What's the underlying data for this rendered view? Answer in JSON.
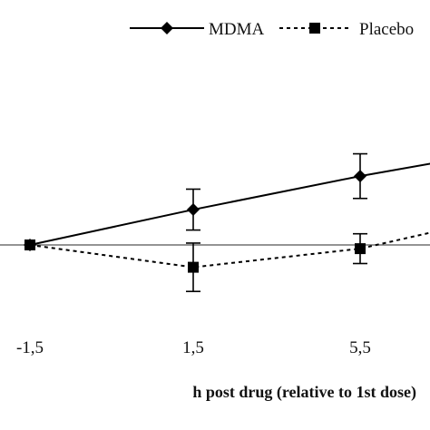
{
  "chart_data": {
    "type": "line",
    "title": "",
    "xlabel": "h post drug (relative to 1st dose)",
    "ylabel": "",
    "x_ticks": [
      "-1,5",
      "1,5",
      "5,5"
    ],
    "legend_position": "top-right",
    "grid": false,
    "x_axis_values": [
      -1.5,
      1.5,
      5.5,
      7.5
    ],
    "series": [
      {
        "name": "MDMA",
        "marker": "diamond",
        "line_style": "solid",
        "color": "#000000",
        "x": [
          -1.5,
          1.5,
          5.5,
          7.5
        ],
        "y": [
          0.0,
          0.95,
          1.85,
          2.2
        ],
        "error": [
          0.0,
          0.55,
          0.6,
          0.0
        ]
      },
      {
        "name": "Placebo",
        "marker": "square",
        "line_style": "dashed",
        "color": "#000000",
        "x": [
          -1.5,
          1.5,
          5.5,
          7.5
        ],
        "y": [
          0.0,
          -0.6,
          -0.1,
          0.35
        ],
        "error": [
          0.0,
          0.65,
          0.4,
          0.0
        ]
      }
    ],
    "reference_line_y": 0
  }
}
